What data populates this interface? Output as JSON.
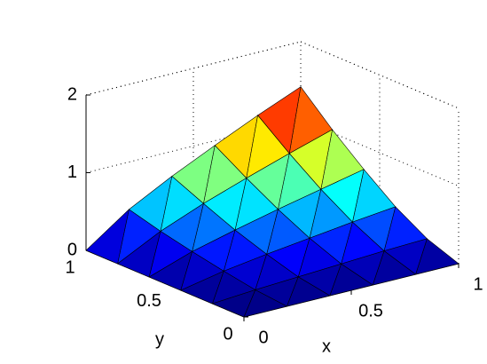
{
  "chart_data": {
    "type": "surface",
    "x": [
      0,
      0.2,
      0.4,
      0.6,
      0.8,
      1
    ],
    "y": [
      0,
      0.2,
      0.4,
      0.6,
      0.8,
      1
    ],
    "z": [
      [
        0,
        0,
        0,
        0,
        0,
        0
      ],
      [
        0,
        0.04,
        0.07,
        0.1,
        0.13,
        0.15
      ],
      [
        0,
        0.11,
        0.19,
        0.26,
        0.33,
        0.39
      ],
      [
        0,
        0.19,
        0.33,
        0.46,
        0.58,
        0.7
      ],
      [
        0,
        0.28,
        0.5,
        0.69,
        0.87,
        1.04
      ],
      [
        0,
        0.39,
        0.68,
        0.94,
        1.19,
        1.42
      ]
    ],
    "xlabel": "x",
    "ylabel": "y",
    "xlim": [
      0,
      1
    ],
    "ylim": [
      0,
      1
    ],
    "zlim": [
      0,
      2
    ],
    "xticks": [
      0,
      0.5,
      1
    ],
    "yticks": [
      0,
      0.5,
      1
    ],
    "zticks": [
      0,
      1,
      2
    ],
    "grid": true,
    "colormap": "jet"
  }
}
